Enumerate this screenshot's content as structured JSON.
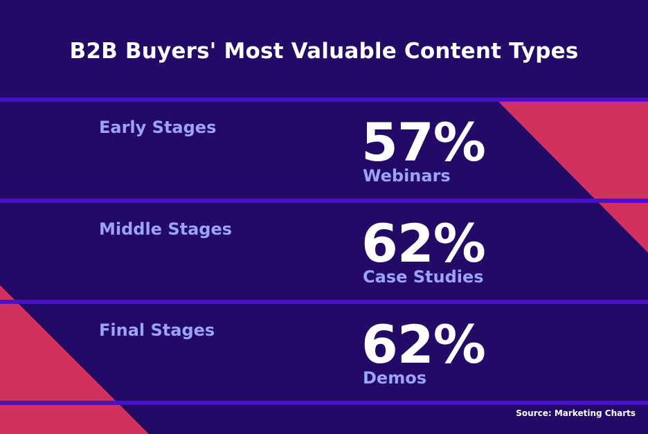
{
  "title": "B2B Buyers' Most Valuable Content Types",
  "colors": {
    "background": "#220a66",
    "divider": "#4a12c8",
    "accent": "#d2305e",
    "label": "#9da3f5",
    "text": "#ffffff"
  },
  "stages": [
    {
      "label": "Early Stages",
      "percent": "57%",
      "content_type": "Webinars"
    },
    {
      "label": "Middle Stages",
      "percent": "62%",
      "content_type": "Case Studies"
    },
    {
      "label": "Final Stages",
      "percent": "62%",
      "content_type": "Demos"
    }
  ],
  "source": "Source: Marketing Charts"
}
